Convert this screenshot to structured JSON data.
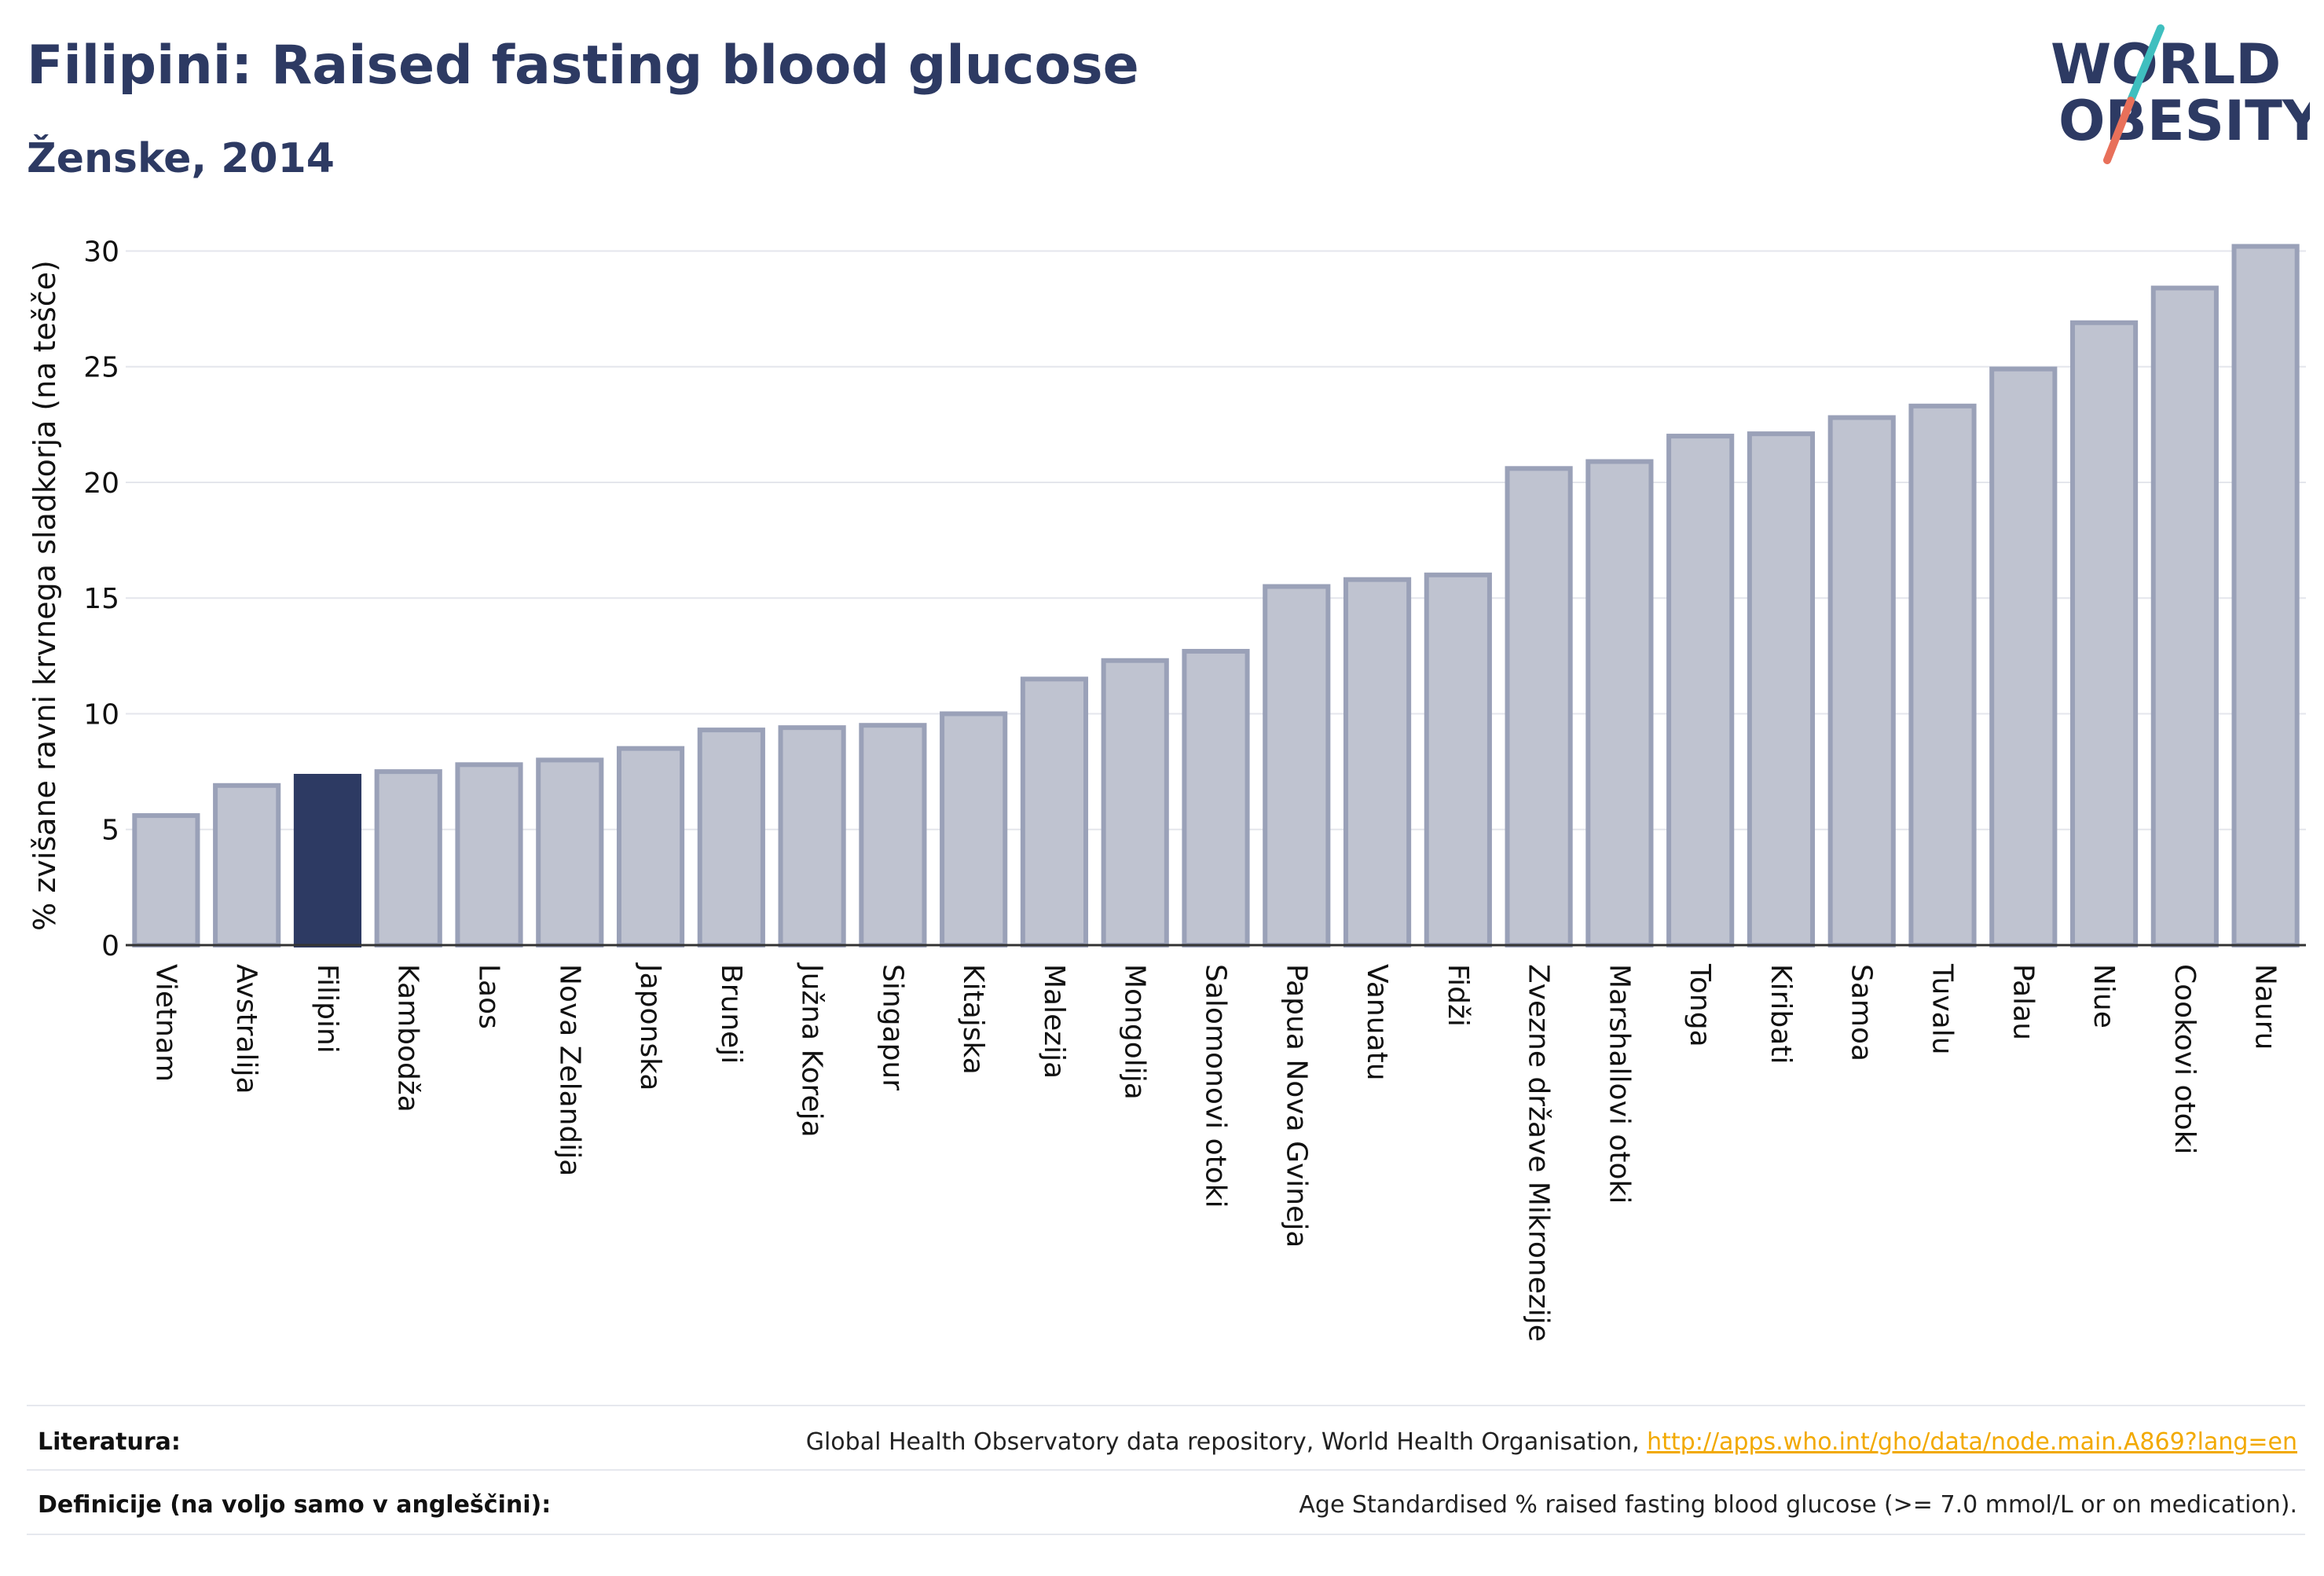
{
  "header": {
    "title": "Filipini: Raised fasting blood glucose",
    "subtitle": "Ženske, 2014"
  },
  "logo": {
    "line1": "WORLD",
    "line2": "OBESITY",
    "accent_colors": [
      "#3fbfbf",
      "#e8705a"
    ]
  },
  "chart_data": {
    "type": "bar",
    "ylabel": "% zvišane ravni krvnega sladkorja (na tešče)",
    "ylim": [
      0,
      31
    ],
    "yticks": [
      0,
      5,
      10,
      15,
      20,
      25,
      30
    ],
    "grid": true,
    "highlight_category": "Filipini",
    "colors": {
      "bar": "#bfc3d0",
      "bar_edge": "#9aa1b8",
      "highlight": "#2d3a63"
    },
    "categories": [
      "Vietnam",
      "Avstralija",
      "Filipini",
      "Kambodža",
      "Laos",
      "Nova Zelandija",
      "Japonska",
      "Brunejі",
      "Južna Koreja",
      "Singapur",
      "Kitajska",
      "Malezija",
      "Mongolija",
      "Salomonovi otoki",
      "Papua Nova Gvineja",
      "Vanuatu",
      "Fidži",
      "Zvezne države Mikronezije",
      "Marshallovi otoki",
      "Tonga",
      "Kiribati",
      "Samoa",
      "Tuvalu",
      "Palau",
      "Niue",
      "Cookovi otoki",
      "Nauru"
    ],
    "values": [
      5.6,
      6.9,
      7.3,
      7.5,
      7.8,
      8.0,
      8.5,
      9.3,
      9.4,
      9.5,
      10.0,
      11.5,
      12.3,
      12.7,
      15.5,
      15.8,
      16.0,
      20.6,
      20.9,
      22.0,
      22.1,
      22.8,
      23.3,
      24.9,
      26.9,
      28.4,
      30.2
    ]
  },
  "footer": {
    "literatura_label": "Literatura:",
    "literatura_text": "Global Health Observatory data repository, World Health Organisation, ",
    "literatura_link": "http://apps.who.int/gho/data/node.main.A869?lang=en",
    "definicije_label": "Definicije (na voljo samo v angleščini):",
    "definicije_text": "Age Standardised % raised fasting blood glucose (>= 7.0 mmol/L or on medication)."
  }
}
